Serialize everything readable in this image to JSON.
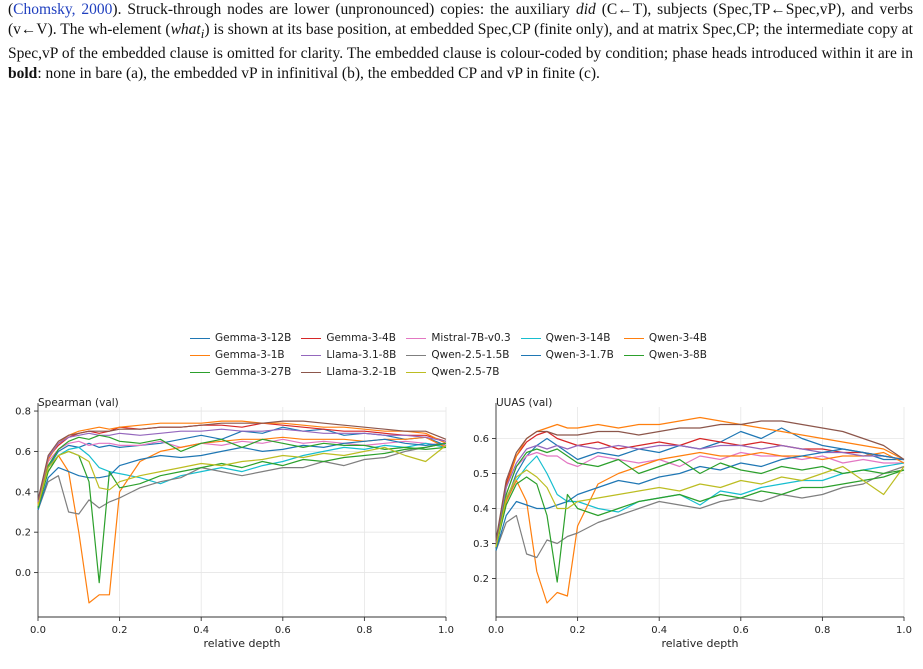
{
  "caption": {
    "cite_open": "(",
    "cite_name": "Chomsky",
    "cite_sep": ", ",
    "cite_year": "2000",
    "s1_rest": "). Struck-through nodes are lower (unpronounced) copies: the auxiliary ",
    "s1_em": "did",
    "s1_rest2": " (C←T), subjects (Spec,TP←Spec,vP), and verbs (v←V). The wh-element (",
    "s1_em2": "what",
    "s1_sub": "i",
    "s1_rest3": ") is shown at its base position, at embedded Spec,CP (finite only), and at matrix Spec,CP; the intermediate copy at Spec,vP of the embedded clause is omitted for clarity. The embedded clause is colour-coded by condition; phase heads introduced within it are in ",
    "s1_bold": "bold",
    "s1_rest4": ": none in bare (a), the embedded vP in infinitival (b), the embedded CP and vP in finite (c)."
  },
  "legend": [
    {
      "name": "Gemma-3-12B",
      "color": "#1f77b4"
    },
    {
      "name": "Gemma-3-4B",
      "color": "#d62728"
    },
    {
      "name": "Mistral-7B-v0.3",
      "color": "#e377c2"
    },
    {
      "name": "Qwen-3-14B",
      "color": "#17becf"
    },
    {
      "name": "Qwen-3-4B",
      "color": "#ff7f0e"
    },
    {
      "name": "Gemma-3-1B",
      "color": "#ff7f0e"
    },
    {
      "name": "Llama-3.1-8B",
      "color": "#9467bd"
    },
    {
      "name": "Qwen-2.5-1.5B",
      "color": "#7f7f7f"
    },
    {
      "name": "Qwen-3-1.7B",
      "color": "#1f77b4"
    },
    {
      "name": "Qwen-3-8B",
      "color": "#2ca02c"
    },
    {
      "name": "Gemma-3-27B",
      "color": "#2ca02c"
    },
    {
      "name": "Llama-3.2-1B",
      "color": "#8c564b"
    },
    {
      "name": "Qwen-2.5-7B",
      "color": "#bcbd22"
    }
  ],
  "chart_data": [
    {
      "type": "line",
      "title": "Spearman (val)",
      "xlabel": "relative depth",
      "ylabel": "",
      "xlim": [
        0.0,
        1.0
      ],
      "ylim": [
        -0.22,
        0.82
      ],
      "xticks": [
        "0.0",
        "0.2",
        "0.4",
        "0.6",
        "0.8",
        "1.0"
      ],
      "yticks": [
        "0.0",
        "0.2",
        "0.4",
        "0.6",
        "0.8"
      ],
      "grid": true,
      "x": [
        0.0,
        0.025,
        0.05,
        0.075,
        0.1,
        0.125,
        0.15,
        0.175,
        0.2,
        0.25,
        0.3,
        0.35,
        0.4,
        0.45,
        0.5,
        0.55,
        0.6,
        0.65,
        0.7,
        0.75,
        0.8,
        0.85,
        0.9,
        0.95,
        1.0
      ],
      "series": [
        {
          "name": "Gemma-3-12B",
          "color": "#1f77b4",
          "values": [
            0.32,
            0.52,
            0.6,
            0.63,
            0.62,
            0.64,
            0.62,
            0.63,
            0.62,
            0.63,
            0.64,
            0.66,
            0.68,
            0.66,
            0.7,
            0.69,
            0.72,
            0.7,
            0.71,
            0.68,
            0.69,
            0.68,
            0.66,
            0.67,
            0.63
          ]
        },
        {
          "name": "Gemma-3-4B",
          "color": "#d62728",
          "values": [
            0.35,
            0.57,
            0.63,
            0.67,
            0.69,
            0.7,
            0.69,
            0.7,
            0.72,
            0.71,
            0.72,
            0.72,
            0.73,
            0.73,
            0.72,
            0.74,
            0.73,
            0.72,
            0.71,
            0.7,
            0.7,
            0.69,
            0.68,
            0.68,
            0.65
          ]
        },
        {
          "name": "Mistral-7B-v0.3",
          "color": "#e377c2",
          "values": [
            0.33,
            0.55,
            0.61,
            0.64,
            0.65,
            0.63,
            0.64,
            0.64,
            0.63,
            0.63,
            0.65,
            0.62,
            0.64,
            0.63,
            0.65,
            0.64,
            0.66,
            0.64,
            0.65,
            0.64,
            0.63,
            0.64,
            0.65,
            0.64,
            0.63
          ]
        },
        {
          "name": "Qwen-3-14B",
          "color": "#17becf",
          "values": [
            0.33,
            0.52,
            0.58,
            0.61,
            0.62,
            0.58,
            0.52,
            0.5,
            0.49,
            0.47,
            0.44,
            0.48,
            0.5,
            0.52,
            0.5,
            0.53,
            0.55,
            0.58,
            0.6,
            0.62,
            0.61,
            0.63,
            0.62,
            0.64,
            0.62
          ]
        },
        {
          "name": "Qwen-3-4B",
          "color": "#ff7f0e",
          "values": [
            0.34,
            0.56,
            0.64,
            0.68,
            0.7,
            0.71,
            0.72,
            0.71,
            0.72,
            0.73,
            0.74,
            0.74,
            0.74,
            0.75,
            0.75,
            0.74,
            0.74,
            0.73,
            0.72,
            0.72,
            0.71,
            0.7,
            0.7,
            0.69,
            0.64
          ]
        },
        {
          "name": "Gemma-3-1B",
          "color": "#ff7f0e",
          "values": [
            0.34,
            0.5,
            0.58,
            0.5,
            0.2,
            -0.15,
            -0.11,
            -0.11,
            0.4,
            0.55,
            0.6,
            0.62,
            0.64,
            0.65,
            0.66,
            0.66,
            0.67,
            0.66,
            0.66,
            0.66,
            0.65,
            0.66,
            0.66,
            0.67,
            0.62
          ]
        },
        {
          "name": "Llama-3.1-8B",
          "color": "#9467bd",
          "values": [
            0.35,
            0.57,
            0.64,
            0.67,
            0.68,
            0.69,
            0.68,
            0.68,
            0.69,
            0.68,
            0.69,
            0.7,
            0.7,
            0.71,
            0.7,
            0.7,
            0.71,
            0.7,
            0.69,
            0.69,
            0.69,
            0.68,
            0.68,
            0.67,
            0.65
          ]
        },
        {
          "name": "Qwen-2.5-1.5B",
          "color": "#7f7f7f",
          "values": [
            0.31,
            0.45,
            0.48,
            0.3,
            0.29,
            0.36,
            0.32,
            0.35,
            0.37,
            0.42,
            0.45,
            0.47,
            0.52,
            0.5,
            0.48,
            0.5,
            0.52,
            0.52,
            0.55,
            0.53,
            0.56,
            0.57,
            0.6,
            0.62,
            0.64
          ]
        },
        {
          "name": "Qwen-3-1.7B",
          "color": "#1f77b4",
          "values": [
            0.31,
            0.47,
            0.52,
            0.5,
            0.48,
            0.47,
            0.47,
            0.48,
            0.53,
            0.56,
            0.58,
            0.57,
            0.58,
            0.6,
            0.62,
            0.6,
            0.61,
            0.63,
            0.62,
            0.64,
            0.65,
            0.66,
            0.64,
            0.63,
            0.64
          ]
        },
        {
          "name": "Qwen-3-8B",
          "color": "#2ca02c",
          "values": [
            0.32,
            0.53,
            0.61,
            0.65,
            0.67,
            0.66,
            0.68,
            0.67,
            0.65,
            0.64,
            0.66,
            0.6,
            0.64,
            0.66,
            0.62,
            0.66,
            0.64,
            0.62,
            0.64,
            0.63,
            0.63,
            0.61,
            0.62,
            0.61,
            0.62
          ]
        },
        {
          "name": "Gemma-3-27B",
          "color": "#2ca02c",
          "values": [
            0.32,
            0.5,
            0.58,
            0.6,
            0.58,
            0.45,
            -0.05,
            0.5,
            0.42,
            0.44,
            0.48,
            0.5,
            0.52,
            0.54,
            0.52,
            0.55,
            0.53,
            0.56,
            0.55,
            0.57,
            0.58,
            0.59,
            0.61,
            0.62,
            0.64
          ]
        },
        {
          "name": "Llama-3.2-1B",
          "color": "#8c564b",
          "values": [
            0.36,
            0.58,
            0.65,
            0.68,
            0.69,
            0.7,
            0.7,
            0.7,
            0.71,
            0.71,
            0.72,
            0.72,
            0.73,
            0.74,
            0.74,
            0.74,
            0.75,
            0.75,
            0.74,
            0.73,
            0.72,
            0.71,
            0.7,
            0.7,
            0.66
          ]
        },
        {
          "name": "Qwen-2.5-7B",
          "color": "#bcbd22",
          "values": [
            0.33,
            0.52,
            0.58,
            0.6,
            0.58,
            0.55,
            0.42,
            0.41,
            0.45,
            0.48,
            0.5,
            0.52,
            0.54,
            0.53,
            0.55,
            0.56,
            0.58,
            0.57,
            0.59,
            0.58,
            0.6,
            0.62,
            0.58,
            0.55,
            0.63
          ]
        }
      ]
    },
    {
      "type": "line",
      "title": "UUAS (val)",
      "xlabel": "relative depth",
      "ylabel": "",
      "xlim": [
        0.0,
        1.0
      ],
      "ylim": [
        0.09,
        0.69
      ],
      "xticks": [
        "0.0",
        "0.2",
        "0.4",
        "0.6",
        "0.8",
        "1.0"
      ],
      "yticks": [
        "0.2",
        "0.3",
        "0.4",
        "0.5",
        "0.6"
      ],
      "grid": true,
      "x": [
        0.0,
        0.025,
        0.05,
        0.075,
        0.1,
        0.125,
        0.15,
        0.175,
        0.2,
        0.25,
        0.3,
        0.35,
        0.4,
        0.45,
        0.5,
        0.55,
        0.6,
        0.65,
        0.7,
        0.75,
        0.8,
        0.85,
        0.9,
        0.95,
        1.0
      ],
      "series": [
        {
          "name": "Gemma-3-12B",
          "color": "#1f77b4",
          "values": [
            0.29,
            0.42,
            0.5,
            0.55,
            0.58,
            0.6,
            0.58,
            0.56,
            0.54,
            0.56,
            0.55,
            0.57,
            0.56,
            0.58,
            0.57,
            0.59,
            0.62,
            0.6,
            0.63,
            0.6,
            0.58,
            0.57,
            0.56,
            0.54,
            0.54
          ]
        },
        {
          "name": "Gemma-3-4B",
          "color": "#d62728",
          "values": [
            0.3,
            0.47,
            0.55,
            0.59,
            0.61,
            0.62,
            0.6,
            0.59,
            0.58,
            0.59,
            0.57,
            0.58,
            0.59,
            0.58,
            0.6,
            0.59,
            0.58,
            0.59,
            0.58,
            0.57,
            0.57,
            0.56,
            0.56,
            0.55,
            0.54
          ]
        },
        {
          "name": "Mistral-7B-v0.3",
          "color": "#e377c2",
          "values": [
            0.29,
            0.44,
            0.52,
            0.55,
            0.56,
            0.55,
            0.55,
            0.53,
            0.52,
            0.55,
            0.54,
            0.53,
            0.54,
            0.52,
            0.55,
            0.54,
            0.56,
            0.55,
            0.55,
            0.54,
            0.55,
            0.53,
            0.54,
            0.53,
            0.53
          ]
        },
        {
          "name": "Qwen-3-14B",
          "color": "#17becf",
          "values": [
            0.28,
            0.43,
            0.48,
            0.52,
            0.55,
            0.5,
            0.44,
            0.42,
            0.42,
            0.4,
            0.39,
            0.42,
            0.43,
            0.44,
            0.41,
            0.45,
            0.44,
            0.46,
            0.47,
            0.48,
            0.48,
            0.5,
            0.51,
            0.52,
            0.53
          ]
        },
        {
          "name": "Qwen-3-4B",
          "color": "#ff7f0e",
          "values": [
            0.3,
            0.46,
            0.55,
            0.6,
            0.62,
            0.63,
            0.64,
            0.63,
            0.63,
            0.64,
            0.63,
            0.64,
            0.64,
            0.65,
            0.66,
            0.65,
            0.64,
            0.63,
            0.62,
            0.61,
            0.6,
            0.59,
            0.58,
            0.57,
            0.54
          ]
        },
        {
          "name": "Gemma-3-1B",
          "color": "#ff7f0e",
          "values": [
            0.29,
            0.42,
            0.48,
            0.42,
            0.22,
            0.13,
            0.16,
            0.15,
            0.35,
            0.47,
            0.5,
            0.52,
            0.54,
            0.55,
            0.56,
            0.55,
            0.55,
            0.56,
            0.55,
            0.55,
            0.54,
            0.55,
            0.55,
            0.56,
            0.53
          ]
        },
        {
          "name": "Llama-3.1-8B",
          "color": "#9467bd",
          "values": [
            0.3,
            0.46,
            0.53,
            0.57,
            0.58,
            0.57,
            0.58,
            0.57,
            0.58,
            0.57,
            0.58,
            0.57,
            0.58,
            0.58,
            0.57,
            0.58,
            0.58,
            0.57,
            0.58,
            0.57,
            0.56,
            0.56,
            0.55,
            0.55,
            0.54
          ]
        },
        {
          "name": "Qwen-2.5-1.5B",
          "color": "#7f7f7f",
          "values": [
            0.28,
            0.36,
            0.38,
            0.27,
            0.26,
            0.31,
            0.3,
            0.32,
            0.33,
            0.36,
            0.38,
            0.4,
            0.42,
            0.41,
            0.4,
            0.42,
            0.43,
            0.42,
            0.44,
            0.43,
            0.44,
            0.46,
            0.47,
            0.5,
            0.52
          ]
        },
        {
          "name": "Qwen-3-1.7B",
          "color": "#1f77b4",
          "values": [
            0.28,
            0.38,
            0.42,
            0.41,
            0.4,
            0.4,
            0.41,
            0.42,
            0.44,
            0.46,
            0.48,
            0.47,
            0.49,
            0.5,
            0.52,
            0.51,
            0.53,
            0.52,
            0.54,
            0.55,
            0.56,
            0.57,
            0.56,
            0.55,
            0.54
          ]
        },
        {
          "name": "Qwen-3-8B",
          "color": "#2ca02c",
          "values": [
            0.29,
            0.44,
            0.52,
            0.56,
            0.57,
            0.56,
            0.57,
            0.55,
            0.53,
            0.52,
            0.54,
            0.5,
            0.52,
            0.54,
            0.5,
            0.53,
            0.51,
            0.5,
            0.52,
            0.51,
            0.52,
            0.5,
            0.51,
            0.5,
            0.51
          ]
        },
        {
          "name": "Gemma-3-27B",
          "color": "#2ca02c",
          "values": [
            0.29,
            0.41,
            0.47,
            0.49,
            0.47,
            0.38,
            0.19,
            0.44,
            0.4,
            0.38,
            0.4,
            0.42,
            0.43,
            0.44,
            0.42,
            0.44,
            0.43,
            0.45,
            0.44,
            0.46,
            0.46,
            0.47,
            0.48,
            0.49,
            0.51
          ]
        },
        {
          "name": "Llama-3.2-1B",
          "color": "#8c564b",
          "values": [
            0.31,
            0.48,
            0.56,
            0.6,
            0.62,
            0.62,
            0.61,
            0.61,
            0.61,
            0.62,
            0.62,
            0.61,
            0.62,
            0.63,
            0.63,
            0.64,
            0.64,
            0.65,
            0.65,
            0.64,
            0.63,
            0.62,
            0.6,
            0.58,
            0.54
          ]
        },
        {
          "name": "Qwen-2.5-7B",
          "color": "#bcbd22",
          "values": [
            0.29,
            0.43,
            0.49,
            0.51,
            0.49,
            0.46,
            0.4,
            0.4,
            0.42,
            0.43,
            0.44,
            0.45,
            0.46,
            0.45,
            0.47,
            0.46,
            0.48,
            0.47,
            0.49,
            0.48,
            0.5,
            0.52,
            0.48,
            0.44,
            0.52
          ]
        }
      ]
    }
  ]
}
